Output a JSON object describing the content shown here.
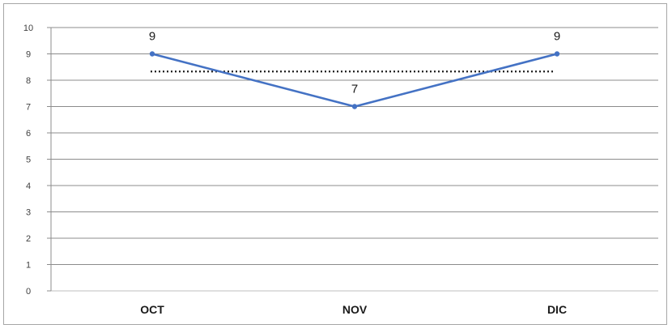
{
  "chart_data": {
    "type": "line",
    "categories": [
      "OCT",
      "NOV",
      "DIC"
    ],
    "series": [
      {
        "values": [
          9,
          7,
          9
        ],
        "color": "#4472c4",
        "data_labels": [
          "9",
          "7",
          "9"
        ]
      }
    ],
    "reference_line": {
      "value": 8.33,
      "style": "dotted",
      "color": "#1f1f1f"
    },
    "ylim": [
      0,
      10
    ],
    "yticks": [
      0,
      1,
      2,
      3,
      4,
      5,
      6,
      7,
      8,
      9,
      10
    ],
    "grid": true,
    "title": "",
    "xlabel": "",
    "ylabel": ""
  }
}
